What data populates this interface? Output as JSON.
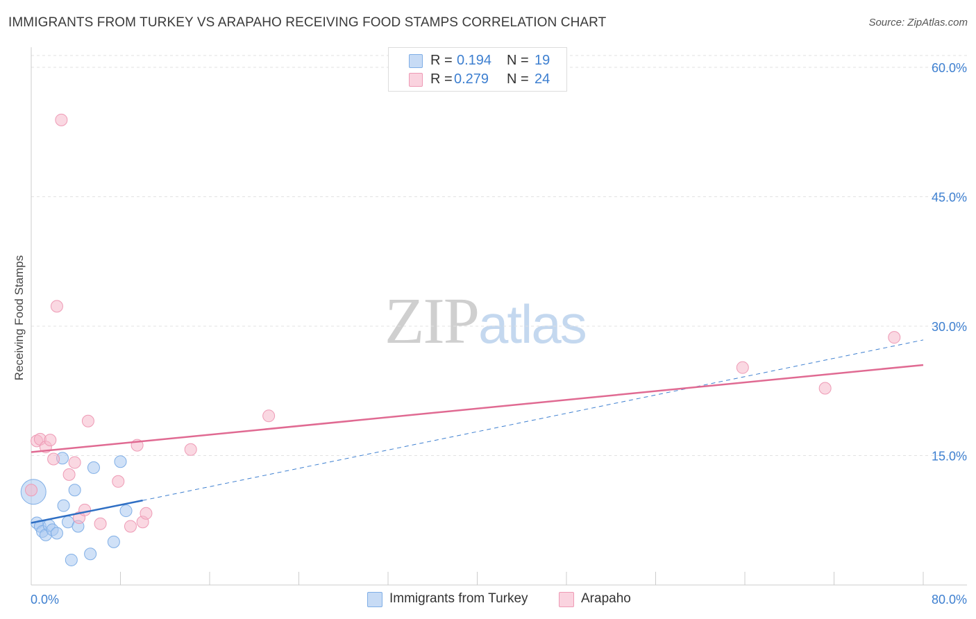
{
  "header": {
    "title": "IMMIGRANTS FROM TURKEY VS ARAPAHO RECEIVING FOOD STAMPS CORRELATION CHART",
    "source": "Source: ZipAtlas.com"
  },
  "watermark": {
    "zip": "ZIP",
    "atlas": "atlas"
  },
  "stats": {
    "rows": [
      {
        "r_label": "R =",
        "r_value": "0.194",
        "n_label": "N =",
        "n_value": "19",
        "color": "#a9c8f0"
      },
      {
        "r_label": "R =",
        "r_value": "0.279",
        "n_label": "N =",
        "n_value": "24",
        "color": "#f5b8cb"
      }
    ]
  },
  "legend": {
    "items": [
      {
        "label": "Immigrants from Turkey",
        "color": "#a9c8f0"
      },
      {
        "label": "Arapaho",
        "color": "#f5b8cb"
      }
    ]
  },
  "chart_data": {
    "type": "scatter",
    "title": "IMMIGRANTS FROM TURKEY VS ARAPAHO RECEIVING FOOD STAMPS CORRELATION CHART",
    "xlabel": "",
    "ylabel": "Receiving Food Stamps",
    "xlim": [
      0,
      80
    ],
    "ylim": [
      0,
      60
    ],
    "x_tick_labels": [
      "0.0%",
      "80.0%"
    ],
    "y_ticks": [
      15,
      30,
      45,
      60
    ],
    "y_tick_labels": [
      "15.0%",
      "30.0%",
      "45.0%",
      "60.0%"
    ],
    "grid": true,
    "legend_position": "bottom",
    "series": [
      {
        "name": "Immigrants from Turkey",
        "color": "#3d7fd0",
        "fill": "#a9c8f0",
        "points": [
          {
            "x": 0.2,
            "y": 10.8,
            "big": true
          },
          {
            "x": 0.5,
            "y": 7.2
          },
          {
            "x": 0.8,
            "y": 6.8
          },
          {
            "x": 1.0,
            "y": 6.2
          },
          {
            "x": 1.3,
            "y": 5.8
          },
          {
            "x": 1.6,
            "y": 6.9
          },
          {
            "x": 1.9,
            "y": 6.4
          },
          {
            "x": 2.3,
            "y": 6.0
          },
          {
            "x": 2.8,
            "y": 14.7
          },
          {
            "x": 2.9,
            "y": 9.2
          },
          {
            "x": 3.3,
            "y": 7.3
          },
          {
            "x": 3.6,
            "y": 2.9
          },
          {
            "x": 3.9,
            "y": 11.0
          },
          {
            "x": 4.2,
            "y": 6.8
          },
          {
            "x": 5.3,
            "y": 3.6
          },
          {
            "x": 5.6,
            "y": 13.6
          },
          {
            "x": 7.4,
            "y": 5.0
          },
          {
            "x": 8.0,
            "y": 14.3
          },
          {
            "x": 8.5,
            "y": 8.6
          }
        ],
        "trend": {
          "x0": 0,
          "y0": 7.2,
          "x1": 10,
          "y1": 9.8,
          "x_ext": 80,
          "y_ext": 28.4
        }
      },
      {
        "name": "Arapaho",
        "color": "#e06a92",
        "fill": "#f5b8cb",
        "points": [
          {
            "x": 0.0,
            "y": 11.0
          },
          {
            "x": 0.5,
            "y": 16.7
          },
          {
            "x": 0.8,
            "y": 16.9
          },
          {
            "x": 1.3,
            "y": 16.0
          },
          {
            "x": 1.7,
            "y": 16.8
          },
          {
            "x": 2.0,
            "y": 14.6
          },
          {
            "x": 2.3,
            "y": 32.3
          },
          {
            "x": 2.7,
            "y": 53.9
          },
          {
            "x": 3.4,
            "y": 12.8
          },
          {
            "x": 3.9,
            "y": 14.2
          },
          {
            "x": 4.3,
            "y": 7.8
          },
          {
            "x": 4.8,
            "y": 8.7
          },
          {
            "x": 5.1,
            "y": 19.0
          },
          {
            "x": 6.2,
            "y": 7.1
          },
          {
            "x": 7.8,
            "y": 12.0
          },
          {
            "x": 8.9,
            "y": 6.8
          },
          {
            "x": 9.5,
            "y": 16.2
          },
          {
            "x": 10.0,
            "y": 7.3
          },
          {
            "x": 10.3,
            "y": 8.3
          },
          {
            "x": 14.3,
            "y": 15.7
          },
          {
            "x": 21.3,
            "y": 19.6
          },
          {
            "x": 63.8,
            "y": 25.2
          },
          {
            "x": 71.2,
            "y": 22.8
          },
          {
            "x": 77.4,
            "y": 28.7
          }
        ],
        "trend": {
          "x0": 0,
          "y0": 15.4,
          "x1": 80,
          "y1": 25.5
        }
      }
    ]
  }
}
